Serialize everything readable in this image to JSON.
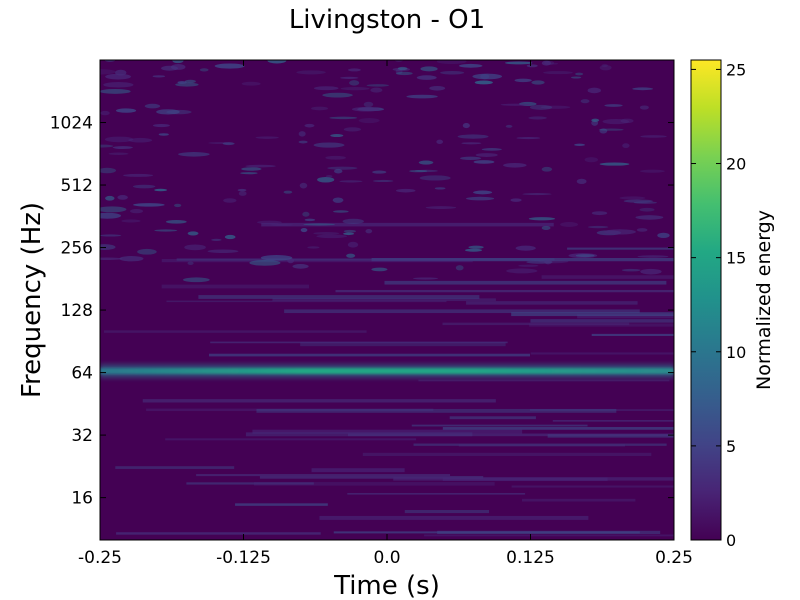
{
  "chart_data": {
    "type": "heatmap",
    "title": "Livingston - O1",
    "xlabel": "Time (s)",
    "ylabel": "Frequency (Hz)",
    "x_ticks": [
      -0.25,
      -0.125,
      0.0,
      0.125,
      0.25
    ],
    "x_tick_labels": [
      "-0.25",
      "-0.125",
      "0.0",
      "0.125",
      "0.25"
    ],
    "xlim": [
      -0.25,
      0.25
    ],
    "y_scale": "log2",
    "y_ticks": [
      16,
      32,
      64,
      128,
      256,
      512,
      1024
    ],
    "y_tick_labels": [
      "16",
      "32",
      "64",
      "128",
      "256",
      "512",
      "1024"
    ],
    "ylim": [
      10,
      2048
    ],
    "colorbar": {
      "label": "Normalized energy",
      "range": [
        0,
        25.5
      ],
      "ticks": [
        0,
        5,
        10,
        15,
        20,
        25
      ],
      "tick_labels": [
        "0",
        "5",
        "10",
        "15",
        "20",
        "25"
      ],
      "colormap": "viridis"
    },
    "features": [
      {
        "kind": "horizontal-line",
        "frequency_hz": 66,
        "time_range": [
          -0.25,
          0.25
        ],
        "peak_energy": 12
      }
    ],
    "grid": false,
    "legend": "none"
  }
}
